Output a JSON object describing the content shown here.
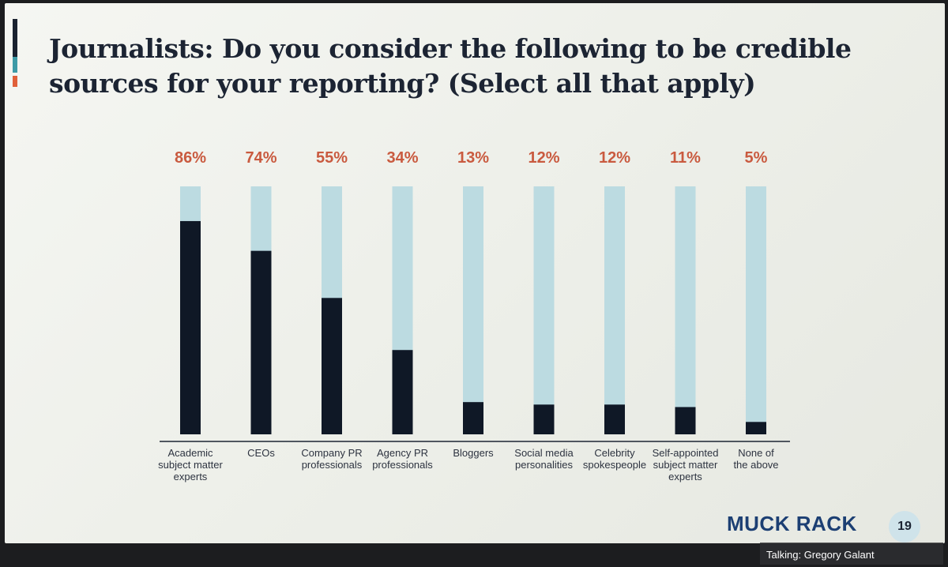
{
  "slide": {
    "title": "Journalists: Do you consider the following to be credible sources for your reporting? (Select all that apply)",
    "logo": "MUCK RACK",
    "page_number": "19"
  },
  "status": {
    "talking": "Talking: Gregory Galant"
  },
  "colors": {
    "bar_fill": "#0f1826",
    "bar_track": "#bcdbe1",
    "value_label": "#c95a3f",
    "title": "#1c2433",
    "logo": "#1c3f73",
    "accent_dark": "#1a2230",
    "accent_teal": "#3d9aa6",
    "accent_orange": "#e0603a"
  },
  "chart_data": {
    "type": "bar",
    "title": "Journalists: Do you consider the following to be credible sources for your reporting? (Select all that apply)",
    "categories": [
      [
        "Academic",
        "subject matter",
        "experts"
      ],
      [
        "CEOs"
      ],
      [
        "Company PR",
        "professionals"
      ],
      [
        "Agency PR",
        "professionals"
      ],
      [
        "Bloggers"
      ],
      [
        "Social media",
        "personalities"
      ],
      [
        "Celebrity",
        "spokespeople"
      ],
      [
        "Self-appointed",
        "subject matter",
        "experts"
      ],
      [
        "None of",
        "the above"
      ]
    ],
    "values": [
      86,
      74,
      55,
      34,
      13,
      12,
      12,
      11,
      5
    ],
    "value_labels": [
      "86%",
      "74%",
      "55%",
      "34%",
      "13%",
      "12%",
      "12%",
      "11%",
      "5%"
    ],
    "ylim": [
      0,
      100
    ],
    "grid": false,
    "legend": "none",
    "orientation": "vertical"
  }
}
